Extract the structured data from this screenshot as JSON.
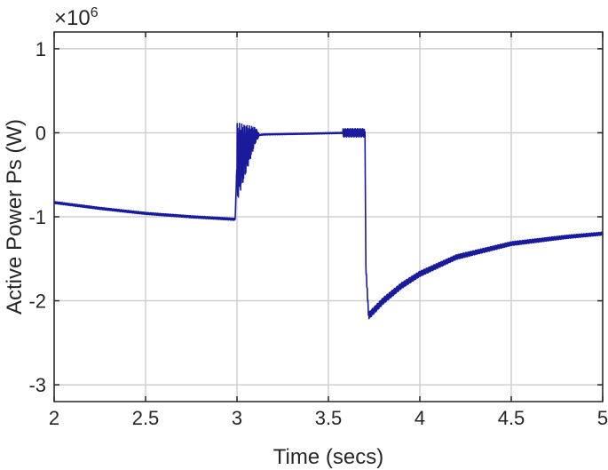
{
  "chart_data": {
    "type": "line",
    "xlabel": "Time (secs)",
    "ylabel": "Active Power Ps (W)",
    "exponent_label": "×10",
    "exponent_power": "6",
    "xlim": [
      2,
      5
    ],
    "ylim": [
      -3.2,
      1.2
    ],
    "grid": true,
    "x_ticks": [
      2,
      2.5,
      3,
      3.5,
      4,
      4.5,
      5
    ],
    "x_tick_labels": [
      "2",
      "2.5",
      "3",
      "3.5",
      "4",
      "4.5",
      "5"
    ],
    "y_ticks": [
      1,
      0,
      -1,
      -2,
      -3
    ],
    "y_tick_labels": [
      "1",
      "0",
      "-1",
      "-2",
      "-3"
    ],
    "line_color": "#1a1a9c",
    "series": [
      {
        "x": [
          2.0,
          2.25,
          2.5,
          2.75,
          2.99,
          3.0,
          3.1,
          3.15,
          3.4,
          3.6,
          3.7,
          3.705,
          3.72,
          3.8,
          3.9,
          4.0,
          4.2,
          4.5,
          4.8,
          5.0
        ],
        "y": [
          -0.83,
          -0.9,
          -0.96,
          -1.0,
          -1.03,
          -0.35,
          -0.03,
          -0.02,
          -0.01,
          0.0,
          0.0,
          -1.6,
          -2.18,
          -2.0,
          -1.82,
          -1.68,
          -1.48,
          -1.32,
          -1.24,
          -1.2
        ]
      }
    ]
  }
}
